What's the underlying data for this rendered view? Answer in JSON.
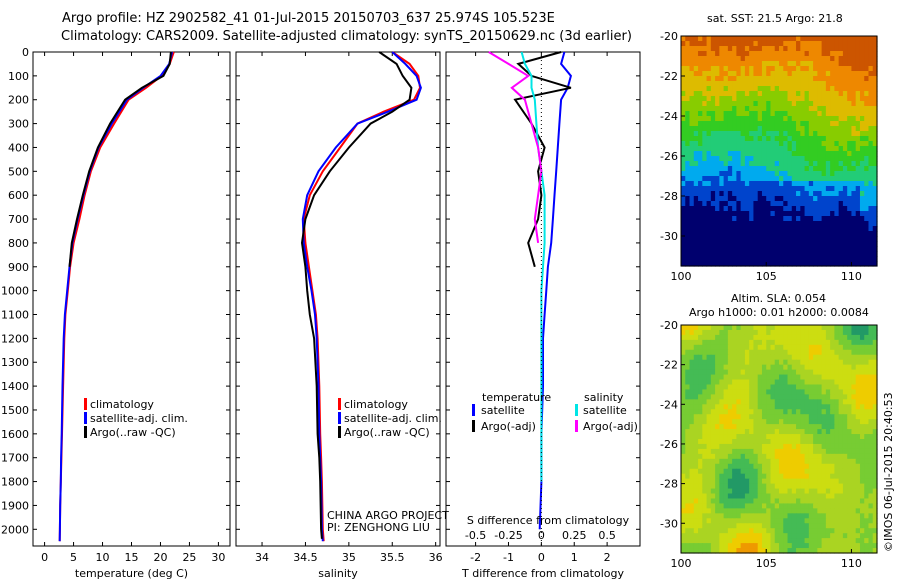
{
  "title_line1": "Argo profile: HZ 2902582_41 01-Jul-2015 20150703_637 25.974S 105.523E",
  "title_line2": "Climatology: CARS2009. Satellite-adjusted climatology: synTS_20150629.nc (3d earlier)",
  "sst_title": "sat. SST: 21.5 Argo: 21.8",
  "sla_title1": "Altim. SLA: 0.054",
  "sla_title2": "Argo h1000: 0.01 h2000: 0.0084",
  "side_label": "©IMOS 06-Jul-2015 20:40:53",
  "project_line1": "CHINA ARGO PROJECT",
  "project_line2": "PI: ZENGHONG LIU",
  "colors": {
    "climatology": "#ff0000",
    "satellite": "#0000ff",
    "argo": "#000000",
    "sal_satellite": "#00e5e5",
    "sal_argo": "#ff00ff"
  },
  "chart_data": [
    {
      "type": "line",
      "panel": "temperature",
      "xlabel": "temperature (deg C)",
      "ylabel": "",
      "xlim": [
        -2,
        32
      ],
      "ylim": [
        2070,
        0
      ],
      "xticks": [
        0,
        5,
        10,
        15,
        20,
        25,
        30
      ],
      "yticks": [
        0,
        100,
        200,
        300,
        400,
        500,
        600,
        700,
        800,
        900,
        1000,
        1100,
        1200,
        1300,
        1400,
        1500,
        1600,
        1700,
        1800,
        1900,
        2000
      ],
      "legend": [
        "climatology",
        "satellite-adj. clim.",
        "Argo(..raw -QC)"
      ],
      "legend_position": "lower-middle",
      "series": [
        {
          "name": "climatology",
          "color": "#ff0000",
          "x": [
            22.3,
            21.6,
            20.2,
            17.5,
            14.5,
            12.0,
            9.6,
            8.0,
            6.9,
            6.0,
            5.0,
            4.4,
            4.0,
            3.6,
            3.4,
            3.2,
            3.0,
            2.9,
            2.8,
            2.7,
            2.65,
            2.6
          ],
          "y": [
            0,
            50,
            100,
            150,
            200,
            300,
            400,
            500,
            600,
            700,
            800,
            900,
            1000,
            1100,
            1200,
            1400,
            1600,
            1700,
            1800,
            1900,
            2000,
            2050
          ]
        },
        {
          "name": "satellite-adj. clim.",
          "color": "#0000ff",
          "x": [
            22.0,
            21.5,
            20.0,
            17.0,
            14.2,
            11.6,
            9.3,
            7.8,
            6.7,
            5.7,
            4.8,
            4.3,
            3.9,
            3.5,
            3.3,
            3.1,
            2.95,
            2.85,
            2.8,
            2.7,
            2.65,
            2.6
          ],
          "y": [
            0,
            50,
            100,
            150,
            200,
            300,
            400,
            500,
            600,
            700,
            800,
            900,
            1000,
            1100,
            1200,
            1400,
            1600,
            1700,
            1800,
            1900,
            2000,
            2050
          ]
        },
        {
          "name": "Argo(..raw -QC)",
          "color": "#000000",
          "x": [
            21.8,
            21.6,
            20.5,
            16.8,
            13.9,
            11.3,
            9.2,
            7.7,
            6.6,
            5.6,
            4.7,
            4.3
          ],
          "y": [
            0,
            50,
            100,
            150,
            200,
            300,
            400,
            500,
            600,
            700,
            800,
            900
          ]
        }
      ]
    },
    {
      "type": "line",
      "panel": "salinity",
      "xlabel": "salinity",
      "xlim": [
        33.7,
        36.05
      ],
      "ylim": [
        2070,
        0
      ],
      "xticks": [
        34,
        34.5,
        35,
        35.5,
        36
      ],
      "legend": [
        "climatology",
        "satellite-adj. clim.",
        "Argo(..raw -QC)"
      ],
      "legend_position": "lower-right",
      "series": [
        {
          "name": "climatology",
          "color": "#ff0000",
          "x": [
            35.5,
            35.7,
            35.8,
            35.82,
            35.75,
            35.4,
            35.1,
            34.9,
            34.7,
            34.55,
            34.48,
            34.5,
            34.54,
            34.58,
            34.62,
            34.64,
            34.66,
            34.67,
            34.68,
            34.69,
            34.7,
            34.71
          ],
          "y": [
            0,
            50,
            100,
            150,
            200,
            250,
            300,
            400,
            500,
            600,
            700,
            800,
            900,
            1000,
            1100,
            1200,
            1400,
            1600,
            1700,
            1800,
            2000,
            2050
          ]
        },
        {
          "name": "satellite-adj. clim.",
          "color": "#0000ff",
          "x": [
            35.5,
            35.65,
            35.78,
            35.83,
            35.78,
            35.45,
            35.1,
            34.85,
            34.65,
            34.52,
            34.47,
            34.48,
            34.52,
            34.57,
            34.61,
            34.63,
            34.65,
            34.66,
            34.67,
            34.68,
            34.69,
            34.7
          ],
          "y": [
            0,
            50,
            100,
            150,
            200,
            250,
            300,
            400,
            500,
            600,
            700,
            800,
            900,
            1000,
            1100,
            1200,
            1400,
            1600,
            1700,
            1800,
            2000,
            2050
          ]
        },
        {
          "name": "Argo(..raw -QC)",
          "color": "#000000",
          "x": [
            35.35,
            35.55,
            35.62,
            35.72,
            35.7,
            35.5,
            35.25,
            35.0,
            34.78,
            34.6,
            34.5,
            34.46,
            34.5,
            34.52,
            34.55,
            34.6,
            34.63,
            34.64,
            34.66,
            34.67,
            34.68,
            34.69
          ],
          "y": [
            0,
            50,
            100,
            150,
            200,
            250,
            300,
            400,
            500,
            600,
            700,
            800,
            900,
            1000,
            1100,
            1200,
            1400,
            1600,
            1700,
            1800,
            2000,
            2040
          ]
        }
      ]
    },
    {
      "type": "line",
      "panel": "differences",
      "xlabel": "T difference from climatology",
      "xlabel_top": "S difference from climatology",
      "xlim": [
        -2.9,
        3.0
      ],
      "ylim": [
        2070,
        0
      ],
      "xticks": [
        -2,
        -1,
        0,
        1,
        2
      ],
      "xticks_top": [
        "-0.5",
        "-0.25",
        "0",
        "0.25",
        "0.5"
      ],
      "legend_temperature_title": "temperature",
      "legend_salinity_title": "salinity",
      "legend_temperature": [
        "satellite",
        "Argo(-adj)"
      ],
      "legend_salinity": [
        "satellite",
        "Argo(-adj)"
      ],
      "series": [
        {
          "name": "temperature satellite",
          "color": "#0000ff",
          "x": [
            0.7,
            0.6,
            0.9,
            0.8,
            0.6,
            0.55,
            0.5,
            0.45,
            0.4,
            0.35,
            0.3,
            0.2,
            0.15,
            0.1,
            0.05,
            0.05,
            0.0,
            0.0,
            -0.05
          ],
          "y": [
            0,
            50,
            100,
            150,
            200,
            300,
            400,
            500,
            600,
            700,
            800,
            900,
            1000,
            1100,
            1200,
            1400,
            1600,
            1800,
            2000
          ]
        },
        {
          "name": "temperature Argo(-adj)",
          "color": "#000000",
          "x": [
            0.6,
            -0.7,
            -0.3,
            0.9,
            -0.8,
            -0.3,
            0.1,
            -0.1,
            0.0,
            -0.1,
            -0.4,
            -0.2
          ],
          "y": [
            0,
            50,
            100,
            150,
            200,
            300,
            400,
            500,
            600,
            700,
            800,
            900
          ]
        },
        {
          "name": "salinity satellite",
          "color": "#00e5e5",
          "x": [
            -0.6,
            -0.5,
            -0.3,
            -0.3,
            -0.2,
            -0.15,
            -0.1,
            0.0,
            0.1,
            0.1,
            0.1,
            0.05,
            0.0,
            0.0,
            0.0,
            0.0,
            0.0
          ],
          "y": [
            0,
            50,
            100,
            150,
            200,
            300,
            400,
            500,
            600,
            700,
            800,
            900,
            1000,
            1200,
            1400,
            1600,
            1800
          ]
        },
        {
          "name": "salinity Argo(-adj)",
          "color": "#ff00ff",
          "x": [
            -1.6,
            -1.0,
            -0.4,
            -0.9,
            -0.5,
            -0.3,
            -0.1,
            0.0,
            -0.1,
            -0.2,
            -0.1
          ],
          "y": [
            0,
            50,
            100,
            150,
            200,
            300,
            400,
            500,
            600,
            700,
            800
          ]
        }
      ]
    },
    {
      "type": "heatmap",
      "panel": "sat. SST map",
      "xlim": [
        100,
        111.5
      ],
      "ylim": [
        -31.5,
        -20
      ],
      "xticks": [
        100,
        105,
        110
      ],
      "yticks": [
        -20,
        -22,
        -24,
        -26,
        -28,
        -30
      ],
      "colormap": [
        "#00006e",
        "#0044cc",
        "#00aaee",
        "#22cc77",
        "#33cc22",
        "#88cc00",
        "#ddbb00",
        "#ee8800",
        "#cc5500"
      ]
    },
    {
      "type": "heatmap",
      "panel": "Altim. SLA map",
      "xlim": [
        100,
        111.5
      ],
      "ylim": [
        -31.5,
        -20
      ],
      "xticks": [
        100,
        105,
        110
      ],
      "yticks": [
        -20,
        -22,
        -24,
        -26,
        -28,
        -30
      ]
    }
  ]
}
